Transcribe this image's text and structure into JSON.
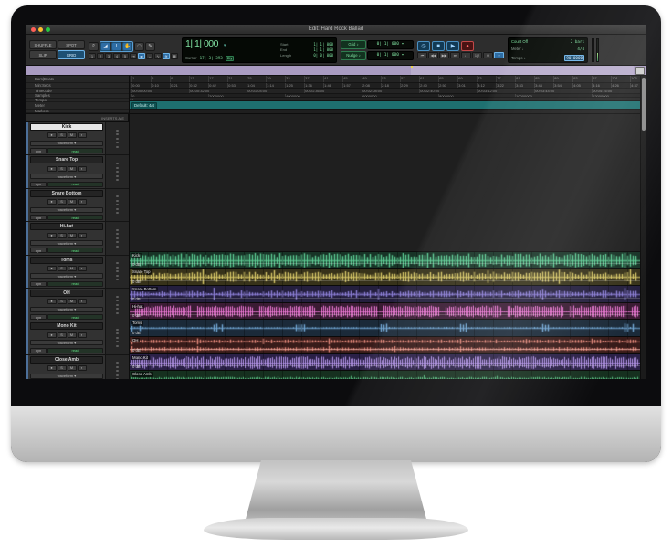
{
  "window": {
    "title": "Edit: Hard Rock Ballad"
  },
  "toolbar": {
    "modes": [
      {
        "label": "SHUFFLE",
        "active": false
      },
      {
        "label": "SPOT",
        "active": false
      },
      {
        "label": "SLIP",
        "active": false
      },
      {
        "label": "GRID",
        "active": true
      }
    ],
    "tool_icons": [
      {
        "name": "zoom-tool-icon",
        "glyph": "⌕",
        "grouped": false
      },
      {
        "name": "trim-tool-icon",
        "glyph": "◢",
        "grouped": true
      },
      {
        "name": "selector-tool-icon",
        "glyph": "I",
        "grouped": true
      },
      {
        "name": "grabber-tool-icon",
        "glyph": "✋",
        "grouped": true
      },
      {
        "name": "scrub-tool-icon",
        "glyph": "◠",
        "grouped": false
      },
      {
        "name": "pencil-tool-icon",
        "glyph": "✎",
        "grouped": false
      }
    ],
    "zoom_presets": [
      "1",
      "2",
      "3",
      "4",
      "5"
    ],
    "small_toggles": [
      {
        "name": "tab-to-transient-toggle",
        "glyph": "⇥",
        "lit": false
      },
      {
        "name": "link-timeline-edit-toggle",
        "glyph": "⇄",
        "lit": true
      },
      {
        "name": "link-track-edit-toggle",
        "glyph": "↔",
        "lit": false
      },
      {
        "name": "insertion-follows-playback-toggle",
        "glyph": "∿",
        "lit": false
      },
      {
        "name": "mirrored-midi-toggle",
        "glyph": "≋",
        "lit": true
      },
      {
        "name": "automation-follows-edit-toggle",
        "glyph": "▦",
        "lit": false
      }
    ],
    "counter": {
      "main_value": "1| 1| 000",
      "dropdown_glyph": "▾",
      "cursor_label": "Cursor",
      "cursor_value": "17| 3| 393",
      "cursor_chip": "Dly",
      "fields": [
        {
          "label": "Start",
          "value": "1| 1| 000"
        },
        {
          "label": "End",
          "value": "1| 1| 000"
        },
        {
          "label": "Length",
          "value": "0| 0| 000"
        }
      ]
    },
    "grid": {
      "label": "Grid ♪",
      "value": "0| 1| 000 ▾"
    },
    "nudge": {
      "label": "Nudge ♪",
      "value": "0| 1| 000 ▾"
    },
    "transport": [
      {
        "name": "online-button",
        "glyph": "◷",
        "kind": "blue"
      },
      {
        "name": "stop-button",
        "glyph": "■",
        "kind": "blue"
      },
      {
        "name": "play-button",
        "glyph": "▶",
        "kind": "blue"
      },
      {
        "name": "record-button",
        "glyph": "●",
        "kind": "rec"
      }
    ],
    "transport_small": [
      {
        "name": "return-to-zero-button",
        "glyph": "⏮",
        "lit": false
      },
      {
        "name": "rewind-button",
        "glyph": "◀◀",
        "lit": false
      },
      {
        "name": "fast-forward-button",
        "glyph": "▶▶",
        "lit": false
      },
      {
        "name": "go-to-end-button",
        "glyph": "⏭",
        "lit": false
      },
      {
        "name": "metronome-toggle",
        "glyph": "♩",
        "lit": false
      },
      {
        "name": "count-in-toggle",
        "glyph": "1|2",
        "lit": false
      },
      {
        "name": "midi-merge-toggle",
        "glyph": "⊕",
        "lit": false
      },
      {
        "name": "conductor-toggle",
        "glyph": "𝄐",
        "lit": true
      }
    ],
    "session": {
      "count_off_label": "Count Off",
      "count_off_value": "2 bars",
      "meter_label": "Meter ♩",
      "meter_value": "4/4",
      "tempo_label": "Tempo ♪",
      "tempo_value": "90.0000"
    }
  },
  "rulers": {
    "labels": [
      "Bars|Beats",
      "Min:Secs",
      "Timecode",
      "Samples",
      "Tempo",
      "Meter",
      "Markers"
    ],
    "bars_spacing": 21,
    "bars_ticks": [
      "1",
      "5",
      "9",
      "13",
      "17",
      "21",
      "25",
      "29",
      "33",
      "37",
      "41",
      "45",
      "49",
      "53",
      "57",
      "61",
      "65",
      "69",
      "73",
      "77",
      "81",
      "85",
      "89",
      "93",
      "97",
      "101",
      "105"
    ],
    "minsec_spacing": 21,
    "minsec_ticks": [
      "0:00",
      "0:10",
      "0:21",
      "0:32",
      "0:42",
      "0:53",
      "1:04",
      "1:14",
      "1:25",
      "1:36",
      "1:46",
      "1:57",
      "2:08",
      "2:18",
      "2:29",
      "2:40",
      "2:50",
      "3:01",
      "3:12",
      "3:22",
      "3:33",
      "3:44",
      "3:54",
      "4:05",
      "4:16",
      "4:26",
      "4:37"
    ],
    "timecode_spacing": 63,
    "timecode_ticks": [
      "00:00:00:00",
      "00:00:32:00",
      "00:01:04:00",
      "00:01:36:00",
      "00:02:08:00",
      "00:02:40:00",
      "00:03:12:00",
      "00:03:44:00",
      "00:04:16:00"
    ],
    "samples_spacing": 84,
    "samples_ticks": [
      "0",
      "2000000",
      "4000000",
      "6000000",
      "8000000",
      "10000000",
      "12000000"
    ],
    "tempo_marker": "90",
    "meter_default": "Default: 4/4"
  },
  "track_header": {
    "inserts_label": "INSERTS A-E",
    "button_glyphs": [
      "●",
      "S",
      "M",
      "▪"
    ],
    "view_label": "waveform ▾",
    "dyn_label": "dyn",
    "automation_label": "read",
    "insert_slots": 5
  },
  "region": {
    "gain_label": "0 dB"
  },
  "tracks": [
    {
      "name": "Kick",
      "selected": true,
      "bg": "#173326",
      "wave": "#5ecf96",
      "style": {
        "step": 3,
        "min": 0.45,
        "max": 0.95,
        "accEvery": 9,
        "accAmp": 1.0,
        "bands": 1
      }
    },
    {
      "name": "Snare Top",
      "selected": false,
      "bg": "#37321a",
      "wave": "#d9c968",
      "style": {
        "step": 3,
        "min": 0.25,
        "max": 0.7,
        "accEvery": 26,
        "accAmp": 1.0,
        "bands": 1
      }
    },
    {
      "name": "Snare Bottom",
      "selected": false,
      "bg": "#241f3e",
      "wave": "#8d80d8",
      "style": {
        "step": 3,
        "min": 0.12,
        "max": 0.5,
        "accEvery": 30,
        "accAmp": 0.9,
        "bands": 1
      }
    },
    {
      "name": "Hi-hat",
      "selected": false,
      "bg": "#3a1b33",
      "wave": "#f07ad8",
      "style": {
        "step": 2,
        "min": 0.5,
        "max": 0.82,
        "gapEvery": 68,
        "gapLen": 6,
        "bands": 1
      }
    },
    {
      "name": "Toms",
      "selected": false,
      "bg": "#1b2a39",
      "wave": "#74aad8",
      "style": {
        "step": 3,
        "min": 0.04,
        "max": 0.12,
        "accEvery": 30,
        "accAmp": 0.55,
        "burst": 4,
        "bands": 1
      }
    },
    {
      "name": "OH",
      "selected": false,
      "bg": "#381b19",
      "wave": "#e4897b",
      "style": {
        "step": 3,
        "min": 0.18,
        "max": 0.55,
        "accEvery": 24,
        "accAmp": 0.85,
        "bands": 2
      }
    },
    {
      "name": "Mono Kit",
      "selected": false,
      "bg": "#2a2046",
      "wave": "#b494e8",
      "style": {
        "step": 2,
        "min": 0.35,
        "max": 0.88,
        "bands": 1
      }
    },
    {
      "name": "Close Amb",
      "selected": false,
      "bg": "#16301f",
      "wave": "#58bd80",
      "style": {
        "step": 2,
        "min": 0.12,
        "max": 0.3,
        "accEvery": 40,
        "accAmp": 0.5,
        "bands": 1
      }
    }
  ]
}
